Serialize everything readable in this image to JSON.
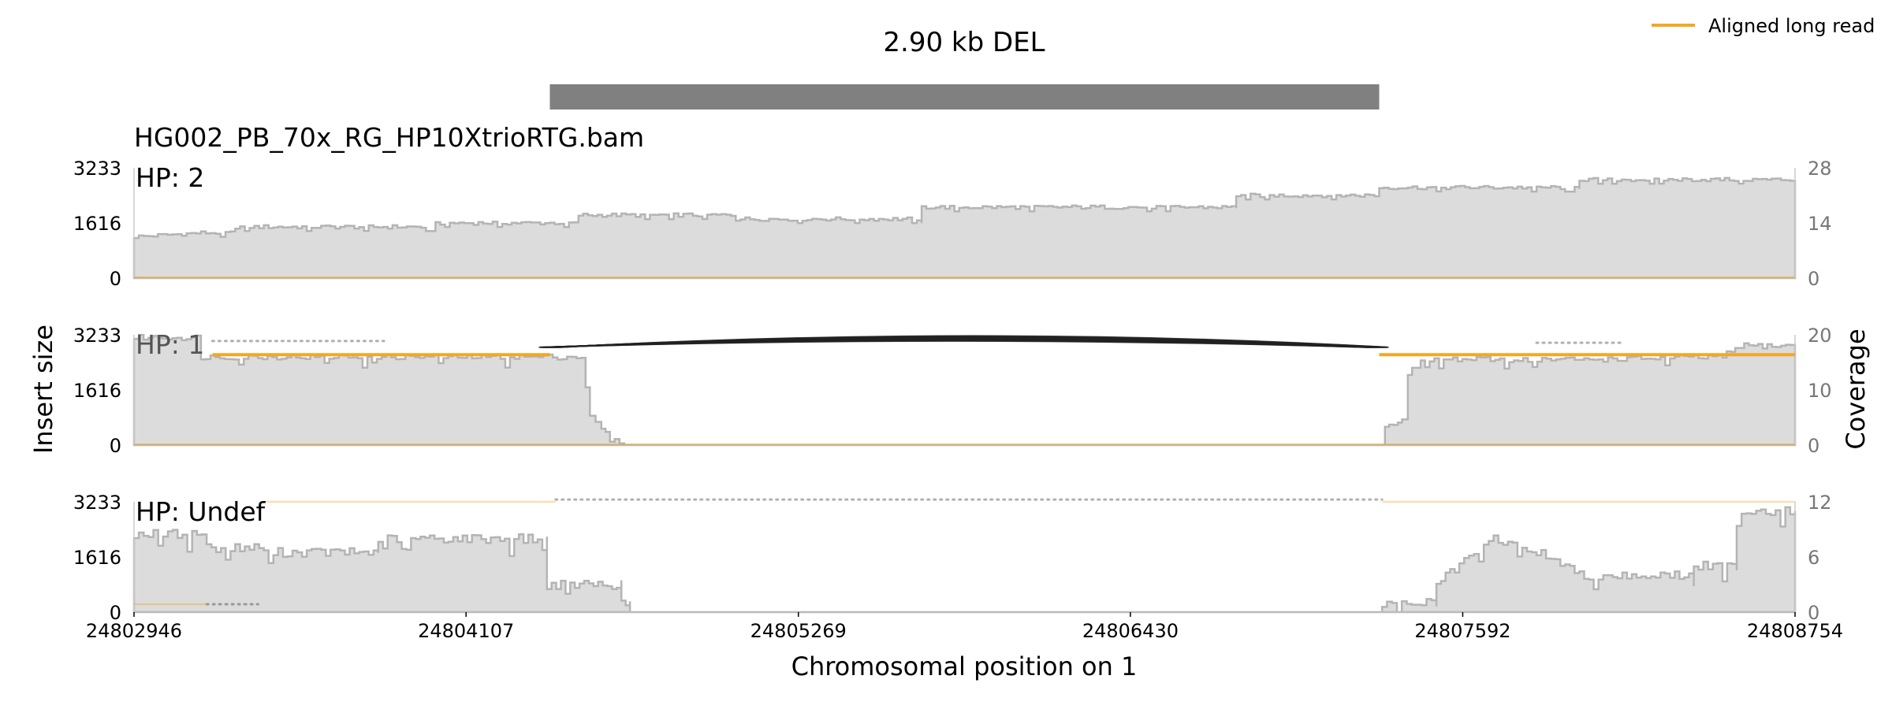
{
  "chart_data": {
    "type": "area",
    "title": "2.90 kb DEL",
    "sample": "HG002_PB_70x_RG_HP10XtrioRTG.bam",
    "xlabel": "Chromosomal position on 1",
    "ylabel_left": "Insert size",
    "ylabel_right": "Coverage",
    "x_ticks": [
      "24802946",
      "24804107",
      "24805269",
      "24806430",
      "24807592",
      "24808754"
    ],
    "xlim": [
      24802946,
      24808754
    ],
    "variant": {
      "start": 24804400,
      "end": 24807300,
      "label": "2.90 kb DEL"
    },
    "legend": [
      {
        "label": "Aligned long read",
        "color": "#f5a623"
      }
    ],
    "left_ticks": [
      "0",
      "1616",
      "3233"
    ],
    "insert_ylim": [
      0,
      3233
    ],
    "panels": [
      {
        "label": "HP: 2",
        "coverage_ticks": [
          "0",
          "14",
          "28"
        ],
        "coverage_max": 28,
        "coverage": [
          [
            24802946,
            10.5
          ],
          [
            24803180,
            11.5
          ],
          [
            24803300,
            11.5
          ],
          [
            24803300,
            13
          ],
          [
            24804000,
            13
          ],
          [
            24804000,
            14
          ],
          [
            24804500,
            14
          ],
          [
            24804500,
            16
          ],
          [
            24805050,
            16
          ],
          [
            24805050,
            15
          ],
          [
            24805700,
            15
          ],
          [
            24805700,
            18
          ],
          [
            24806800,
            18
          ],
          [
            24806800,
            21
          ],
          [
            24807300,
            21
          ],
          [
            24807300,
            23
          ],
          [
            24808000,
            23
          ],
          [
            24808000,
            25
          ],
          [
            24808754,
            25
          ]
        ],
        "reads": [
          {
            "start": 24802946,
            "end": 24808754,
            "insert": 0,
            "color": "#f5a623",
            "opacity": 0.55,
            "width": 2
          }
        ],
        "arcs": []
      },
      {
        "label": "HP: 1",
        "coverage_ticks": [
          "0",
          "10",
          "20"
        ],
        "coverage_max": 20,
        "coverage": [
          [
            24802946,
            19.5
          ],
          [
            24803180,
            19.5
          ],
          [
            24803180,
            16
          ],
          [
            24804510,
            16
          ],
          [
            24804540,
            5
          ],
          [
            24804580,
            3
          ],
          [
            24804610,
            1
          ],
          [
            24804660,
            0
          ],
          [
            24807300,
            0
          ],
          [
            24807320,
            3
          ],
          [
            24807380,
            5
          ],
          [
            24807400,
            13
          ],
          [
            24807460,
            15.5
          ],
          [
            24808000,
            15.5
          ],
          [
            24808500,
            16
          ],
          [
            24808560,
            18
          ],
          [
            24808754,
            18
          ]
        ],
        "reads": [
          {
            "start": 24803220,
            "end": 24804400,
            "insert": 2650,
            "color": "#f5a623",
            "opacity": 1,
            "width": 4
          },
          {
            "start": 24807300,
            "end": 24808754,
            "insert": 2650,
            "color": "#f5a623",
            "opacity": 1,
            "width": 4
          },
          {
            "start": 24802946,
            "end": 24808754,
            "insert": 0,
            "color": "#f5a623",
            "opacity": 0.55,
            "width": 2
          }
        ],
        "arcs": [
          {
            "start": 24803220,
            "end": 24803820,
            "peak": 3050,
            "color": "#b0b0b0",
            "style": "dotted",
            "count": 1
          },
          {
            "start": 24807850,
            "end": 24808150,
            "peak": 3000,
            "color": "#b0b0b0",
            "style": "dotted",
            "count": 1
          },
          {
            "start": 24804400,
            "end": 24807300,
            "peak": 3050,
            "color": "#222222",
            "style": "solid",
            "count": 14
          }
        ]
      },
      {
        "label": "HP: Undef",
        "coverage_ticks": [
          "0",
          "6",
          "12"
        ],
        "coverage_max": 12,
        "coverage": [
          [
            24802946,
            8.5
          ],
          [
            24803200,
            8.5
          ],
          [
            24803200,
            7
          ],
          [
            24803400,
            7
          ],
          [
            24803400,
            6.5
          ],
          [
            24803800,
            6.5
          ],
          [
            24803800,
            8
          ],
          [
            24804390,
            8
          ],
          [
            24804390,
            3
          ],
          [
            24804650,
            3
          ],
          [
            24804650,
            1
          ],
          [
            24804680,
            1
          ],
          [
            24804680,
            0
          ],
          [
            24807310,
            0
          ],
          [
            24807310,
            1
          ],
          [
            24807500,
            1
          ],
          [
            24807500,
            3
          ],
          [
            24807580,
            5
          ],
          [
            24807700,
            8
          ],
          [
            24807900,
            6
          ],
          [
            24808000,
            4
          ],
          [
            24808400,
            4
          ],
          [
            24808400,
            5
          ],
          [
            24808550,
            5
          ],
          [
            24808550,
            11
          ],
          [
            24808754,
            11
          ]
        ],
        "reads": [
          {
            "start": 24803400,
            "end": 24804420,
            "insert": 3233,
            "color": "#f5a623",
            "opacity": 0.35,
            "width": 2.5
          },
          {
            "start": 24807310,
            "end": 24808754,
            "insert": 3233,
            "color": "#f5a623",
            "opacity": 0.35,
            "width": 2.5
          },
          {
            "start": 24802946,
            "end": 24803200,
            "insert": 230,
            "color": "#f5a623",
            "opacity": 0.45,
            "width": 2
          }
        ],
        "arcs": [
          {
            "start": 24804420,
            "end": 24807310,
            "peak": 3300,
            "color": "#b0b0b0",
            "style": "dotted",
            "count": 1
          },
          {
            "start": 24803200,
            "end": 24803380,
            "peak": 230,
            "color": "#999999",
            "style": "dotted",
            "count": 1
          }
        ]
      }
    ]
  }
}
